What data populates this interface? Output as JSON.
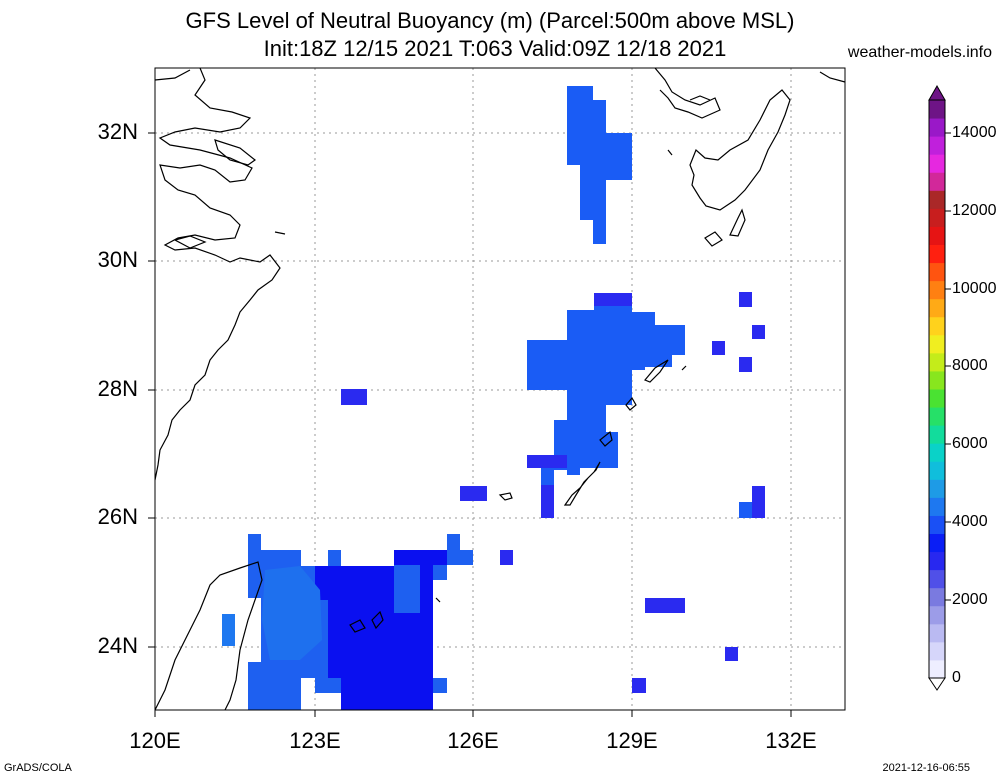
{
  "title_line1": "GFS Level of Neutral Buoyancy (m) (Parcel:500m above MSL)",
  "title_line2": "Init:18Z 12/15 2021 T:063 Valid:09Z 12/18 2021",
  "site": "weather-models.info",
  "lat_labels": [
    "32N",
    "30N",
    "28N",
    "26N",
    "24N"
  ],
  "lon_labels": [
    "120E",
    "123E",
    "126E",
    "129E",
    "132E"
  ],
  "colorbar": {
    "labels": [
      "0",
      "2000",
      "4000",
      "6000",
      "8000",
      "10000",
      "12000",
      "14000"
    ],
    "colors": [
      "#eeeeff",
      "#d6d6fa",
      "#babaf2",
      "#9c9ce8",
      "#7a7ae0",
      "#5050e8",
      "#2828f0",
      "#0a1ef5",
      "#1a50f5",
      "#1e78f0",
      "#1e9be6",
      "#10bedc",
      "#0ad2c8",
      "#12dc9c",
      "#26e068",
      "#4ae232",
      "#88e61e",
      "#c4ec1a",
      "#f0ee20",
      "#ffd21c",
      "#ffaa16",
      "#ff8012",
      "#ff5410",
      "#ff2010",
      "#e61414",
      "#c81e1e",
      "#aa2828",
      "#d2289a",
      "#e628e0",
      "#c020dc",
      "#9a18c8",
      "#6e1486"
    ]
  },
  "footer_left": "GrADS/COLA",
  "footer_right": "2021-12-16-06:55"
}
